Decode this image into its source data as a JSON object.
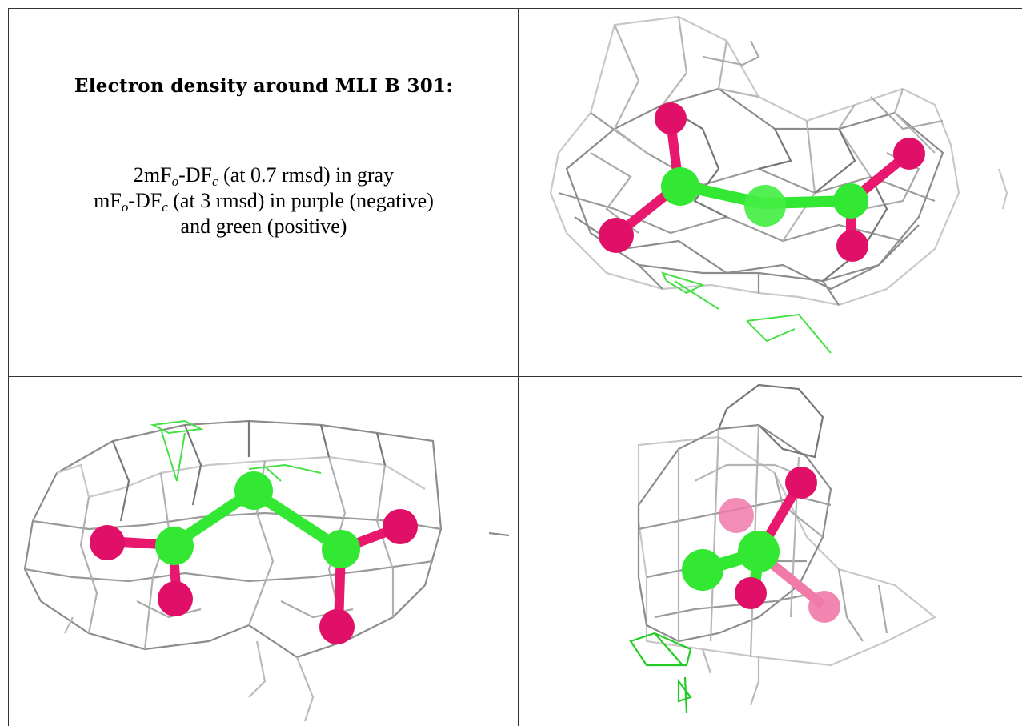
{
  "panel_text": {
    "title": "Electron density around MLI B 301:",
    "line1": {
      "a": "2mF",
      "s1": "o",
      "b": "-DF",
      "s2": "c",
      "c": " (at 0.7 rmsd) in gray"
    },
    "line2": {
      "a": "mF",
      "s1": "o",
      "b": "-DF",
      "s2": "c",
      "c": " (at 3 rmsd) in purple (negative)"
    },
    "line3": "and green (positive)"
  },
  "colors": {
    "mesh_gray": "#8c8c8c",
    "mesh_light": "#c8c8c8",
    "carbon": "#33e833",
    "oxygen": "#e8186e",
    "positive_density": "#33dd33",
    "border": "#333333"
  },
  "views": [
    {
      "name": "view-1",
      "icons": [
        "gray-density-mesh",
        "malonate-ball-and-stick",
        "positive-difference-mesh"
      ]
    },
    {
      "name": "view-2",
      "icons": [
        "gray-density-mesh",
        "malonate-ball-and-stick",
        "positive-difference-mesh"
      ]
    },
    {
      "name": "view-3",
      "icons": [
        "gray-density-mesh",
        "malonate-ball-and-stick",
        "positive-difference-mesh"
      ]
    }
  ]
}
